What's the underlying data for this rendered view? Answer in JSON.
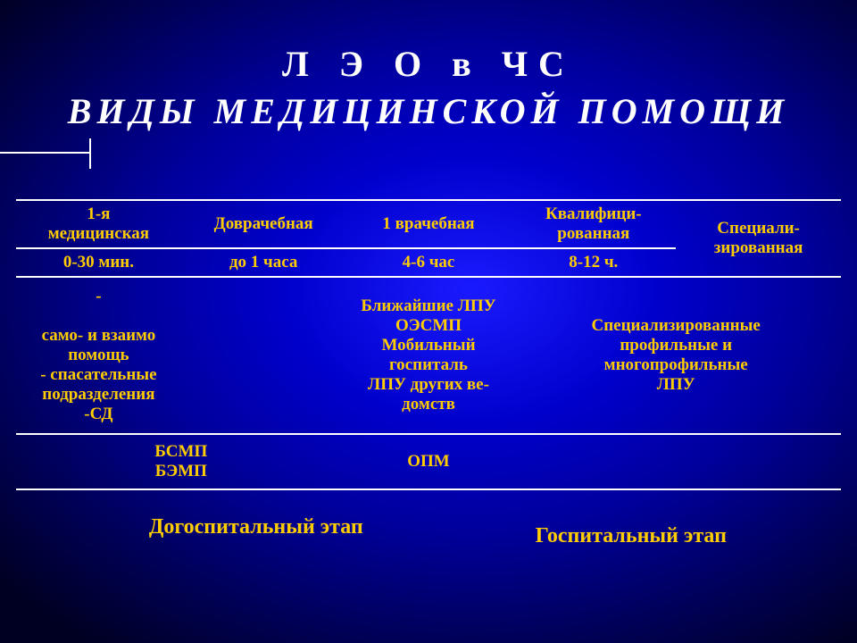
{
  "title": {
    "line1": "Л Э О   в   ЧС",
    "line2": "ВИДЫ  МЕДИЦИНСКОЙ  ПОМОЩИ"
  },
  "table": {
    "columns_pct": [
      20,
      20,
      20,
      20,
      20
    ],
    "header": {
      "c0": [
        "1-я",
        "медицинская"
      ],
      "c1": [
        "Доврачебная"
      ],
      "c2": [
        "1 врачебная"
      ],
      "c3": [
        "Квалифици-",
        "рованная"
      ],
      "c4": [
        "Специали-",
        "зированная"
      ]
    },
    "times": {
      "c0": "0-30 мин.",
      "c1": "до 1 часа",
      "c2": "4-6 час",
      "c3": "8-12 ч."
    },
    "row3": {
      "c0": [
        "-",
        "",
        "само- и  взаимо",
        "помощь",
        "- спасательные",
        "подразделения",
        "-СД"
      ],
      "c1": [
        ""
      ],
      "c2": [
        "Ближайшие ЛПУ",
        "ОЭСМП",
        "Мобильный",
        "госпиталь",
        "ЛПУ других ве-",
        "домств"
      ],
      "c34": [
        "Специализированные",
        "профильные и",
        "многопрофильные",
        "ЛПУ"
      ]
    },
    "row4": {
      "c01": [
        "БСМП",
        "БЭМП"
      ],
      "c2": [
        "ОПМ"
      ],
      "c3": [
        ""
      ],
      "c4": [
        ""
      ]
    }
  },
  "stages": {
    "left": "Догоспитальный этап",
    "right": "Госпитальный этап"
  },
  "style": {
    "text_color": "#ffcc00",
    "border_color": "#ffffff",
    "title_color": "#ffffff",
    "bg_gradient_center": "#1a1aff",
    "bg_gradient_edge": "#000022",
    "font_family": "Times New Roman",
    "title_fontsize": 40,
    "cell_fontsize": 19,
    "stage_fontsize": 24
  }
}
